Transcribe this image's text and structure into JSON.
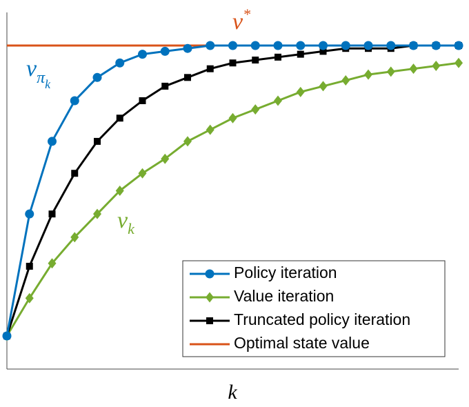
{
  "chart_data": {
    "type": "line",
    "x": [
      0,
      1,
      2,
      3,
      4,
      5,
      6,
      7,
      8,
      9,
      10,
      11,
      12,
      13,
      14,
      15,
      16,
      17,
      18,
      19,
      20
    ],
    "xlim": [
      0,
      20
    ],
    "ylim": [
      -0.114,
      1.114
    ],
    "x_label": "k",
    "series": [
      {
        "name": "Policy iteration",
        "color": "#0072bd",
        "marker": "circle",
        "values": [
          0,
          0.42,
          0.67,
          0.81,
          0.89,
          0.94,
          0.97,
          0.98,
          0.99,
          1,
          1,
          1,
          1,
          1,
          1,
          1,
          1,
          1,
          1,
          1,
          1
        ]
      },
      {
        "name": "Value iteration",
        "color": "#77ac30",
        "marker": "diamond",
        "values": [
          0,
          0.13,
          0.25,
          0.34,
          0.42,
          0.5,
          0.56,
          0.61,
          0.67,
          0.71,
          0.75,
          0.78,
          0.81,
          0.84,
          0.86,
          0.88,
          0.9,
          0.91,
          0.92,
          0.93,
          0.94
        ]
      },
      {
        "name": "Truncated policy iteration",
        "color": "#000000",
        "marker": "square",
        "values": [
          0,
          0.24,
          0.42,
          0.56,
          0.67,
          0.75,
          0.81,
          0.86,
          0.89,
          0.92,
          0.94,
          0.95,
          0.96,
          0.97,
          0.98,
          0.99,
          0.99,
          0.99,
          1,
          1,
          1
        ]
      },
      {
        "name": "Optimal state value",
        "color": "#d95319",
        "marker": "none",
        "values": [
          1,
          1,
          1,
          1,
          1,
          1,
          1,
          1,
          1,
          1,
          1,
          1,
          1,
          1,
          1,
          1,
          1,
          1,
          1,
          1,
          1
        ]
      }
    ],
    "annotations": [
      {
        "base": "v",
        "sup": "*"
      },
      {
        "base": "v",
        "sub": "π",
        "subsub": "k"
      },
      {
        "base": "v",
        "sub": "k"
      }
    ],
    "legend": "lower right"
  }
}
